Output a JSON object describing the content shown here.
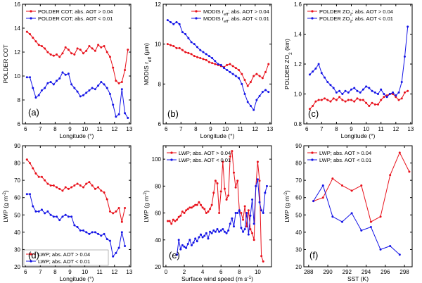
{
  "colors": {
    "red": "#e8111b",
    "blue": "#1414e6"
  },
  "chart_data": [
    {
      "id": "a",
      "type": "line",
      "panel_label": "(a)",
      "xlabel": "Longitude (°)",
      "ylabel": "POLDER COT",
      "xlim": [
        5.8,
        13.1
      ],
      "ylim": [
        6,
        16
      ],
      "xticks": [
        6,
        7,
        8,
        9,
        10,
        11,
        12,
        13
      ],
      "yticks": [
        6,
        8,
        10,
        12,
        14,
        16
      ],
      "legend_loc": "top",
      "series": [
        {
          "name": "POLDER COT; abs. AOT > 0.04",
          "color": "red",
          "x": [
            6.1,
            6.3,
            6.5,
            6.7,
            6.9,
            7.1,
            7.3,
            7.5,
            7.7,
            7.9,
            8.1,
            8.3,
            8.5,
            8.7,
            8.9,
            9.1,
            9.3,
            9.5,
            9.7,
            9.9,
            10.1,
            10.3,
            10.5,
            10.7,
            10.9,
            11.1,
            11.3,
            11.5,
            11.7,
            11.9,
            12.1,
            12.3,
            12.5,
            12.7,
            12.9
          ],
          "y": [
            13.7,
            13.5,
            13.2,
            12.9,
            12.6,
            12.5,
            12.3,
            12.0,
            11.8,
            11.7,
            11.8,
            11.6,
            11.9,
            12.4,
            12.2,
            11.9,
            11.8,
            12.3,
            12.2,
            11.9,
            12.1,
            12.5,
            12.3,
            12.1,
            12.6,
            12.4,
            12.5,
            12.0,
            11.6,
            10.7,
            9.6,
            9.4,
            9.5,
            10.5,
            12.2
          ]
        },
        {
          "name": "POLDER COT; abs. AOT < 0.01",
          "color": "blue",
          "x": [
            6.1,
            6.3,
            6.5,
            6.7,
            6.9,
            7.1,
            7.3,
            7.5,
            7.7,
            7.9,
            8.1,
            8.3,
            8.5,
            8.7,
            8.9,
            9.1,
            9.3,
            9.5,
            9.7,
            9.9,
            10.1,
            10.3,
            10.5,
            10.7,
            10.9,
            11.1,
            11.3,
            11.5,
            11.7,
            11.9,
            12.1,
            12.3,
            12.5,
            12.7,
            12.9
          ],
          "y": [
            9.9,
            9.9,
            9.0,
            8.2,
            8.4,
            8.8,
            9.0,
            9.4,
            9.5,
            9.3,
            9.6,
            9.8,
            10.3,
            10.1,
            10.2,
            9.3,
            9.0,
            8.7,
            8.3,
            8.4,
            8.6,
            8.8,
            9.0,
            8.9,
            9.2,
            9.5,
            9.3,
            9.0,
            8.5,
            7.6,
            6.6,
            6.8,
            8.9,
            6.9,
            6.5
          ]
        }
      ]
    },
    {
      "id": "b",
      "type": "line",
      "panel_label": "(b)",
      "xlabel": "Longitude (°)",
      "ylabel": "MODIS r_eff (μm)",
      "xlim": [
        5.8,
        13.1
      ],
      "ylim": [
        6,
        12
      ],
      "xticks": [
        6,
        7,
        8,
        9,
        10,
        11,
        12,
        13
      ],
      "yticks": [
        6,
        8,
        10,
        12
      ],
      "legend_loc": "top-right",
      "series": [
        {
          "name": "MODIS r_eff; abs. AOT > 0.04",
          "color": "red",
          "x": [
            6.1,
            6.3,
            6.5,
            6.7,
            6.9,
            7.1,
            7.3,
            7.5,
            7.7,
            7.9,
            8.1,
            8.3,
            8.5,
            8.7,
            8.9,
            9.1,
            9.3,
            9.5,
            9.7,
            9.9,
            10.1,
            10.3,
            10.5,
            10.7,
            10.9,
            11.1,
            11.3,
            11.5,
            11.7,
            11.9,
            12.1,
            12.3,
            12.5,
            12.7,
            12.9
          ],
          "y": [
            10.0,
            9.95,
            9.9,
            9.8,
            9.8,
            9.7,
            9.6,
            9.55,
            9.5,
            9.4,
            9.35,
            9.3,
            9.25,
            9.2,
            9.1,
            9.05,
            9.0,
            8.95,
            8.9,
            8.85,
            8.95,
            9.0,
            8.9,
            8.8,
            8.7,
            8.5,
            8.2,
            7.9,
            8.1,
            8.4,
            8.5,
            8.4,
            8.3,
            8.6,
            9.0
          ]
        },
        {
          "name": "MODIS r_eff; abs. AOT < 0.01",
          "color": "blue",
          "x": [
            6.1,
            6.3,
            6.5,
            6.7,
            6.9,
            7.1,
            7.3,
            7.5,
            7.7,
            7.9,
            8.1,
            8.3,
            8.5,
            8.7,
            8.9,
            9.1,
            9.3,
            9.5,
            9.7,
            9.9,
            10.1,
            10.3,
            10.5,
            10.7,
            10.9,
            11.1,
            11.3,
            11.5,
            11.7,
            11.9,
            12.1,
            12.3,
            12.5,
            12.7,
            12.9
          ],
          "y": [
            11.2,
            11.1,
            11.0,
            11.1,
            11.0,
            10.6,
            10.5,
            10.3,
            10.1,
            10.0,
            9.85,
            9.7,
            9.6,
            9.5,
            9.4,
            9.3,
            9.15,
            9.0,
            8.95,
            8.8,
            8.7,
            8.6,
            8.5,
            8.4,
            8.3,
            8.0,
            7.5,
            7.1,
            6.9,
            6.7,
            7.2,
            7.4,
            7.6,
            7.7,
            7.6
          ]
        }
      ]
    },
    {
      "id": "c",
      "type": "line",
      "panel_label": "(c)",
      "xlabel": "Longitude (°)",
      "ylabel": "POLDER ZO_2 (km)",
      "xlim": [
        5.8,
        13.1
      ],
      "ylim": [
        0.8,
        1.6
      ],
      "xticks": [
        6,
        7,
        8,
        9,
        10,
        11,
        12,
        13
      ],
      "yticks": [
        0.8,
        1.0,
        1.2,
        1.4,
        1.6
      ],
      "legend_loc": "top",
      "series": [
        {
          "name": "POLDER ZO_2; abs. AOT > 0.04",
          "color": "red",
          "x": [
            6.2,
            6.4,
            6.6,
            6.8,
            7.0,
            7.2,
            7.4,
            7.6,
            7.8,
            8.0,
            8.2,
            8.4,
            8.6,
            8.8,
            9.0,
            9.2,
            9.4,
            9.6,
            9.8,
            10.0,
            10.2,
            10.4,
            10.6,
            10.8,
            11.0,
            11.2,
            11.4,
            11.6,
            11.8,
            12.0,
            12.2,
            12.4,
            12.6,
            12.8
          ],
          "y": [
            0.9,
            0.92,
            0.95,
            0.96,
            0.96,
            0.97,
            0.96,
            0.95,
            0.97,
            0.96,
            0.98,
            0.96,
            0.95,
            0.96,
            0.96,
            0.95,
            0.97,
            0.96,
            0.96,
            0.94,
            0.92,
            0.94,
            0.93,
            0.93,
            0.96,
            0.98,
            0.99,
            1.0,
            1.0,
            0.98,
            0.96,
            0.97,
            1.01,
            1.02
          ]
        },
        {
          "name": "POLDER ZO_2; abs. AOT < 0.01",
          "color": "blue",
          "x": [
            6.2,
            6.4,
            6.6,
            6.8,
            7.0,
            7.2,
            7.4,
            7.6,
            7.8,
            8.0,
            8.2,
            8.4,
            8.6,
            8.8,
            9.0,
            9.2,
            9.4,
            9.6,
            9.8,
            10.0,
            10.2,
            10.4,
            10.6,
            10.8,
            11.0,
            11.2,
            11.4,
            11.6,
            11.8,
            12.0,
            12.2,
            12.4,
            12.6,
            12.8
          ],
          "y": [
            1.13,
            1.15,
            1.17,
            1.2,
            1.14,
            1.11,
            1.08,
            1.06,
            1.04,
            1.01,
            1.02,
            1.0,
            1.02,
            1.01,
            1.03,
            1.04,
            1.02,
            1.01,
            1.03,
            1.05,
            1.04,
            1.02,
            1.01,
            1.0,
            1.03,
            1.0,
            0.98,
            1.0,
            1.01,
            0.99,
            1.01,
            1.08,
            1.25,
            1.45
          ]
        }
      ]
    },
    {
      "id": "d",
      "type": "line",
      "panel_label": "(d)",
      "xlabel": "Longitude (°)",
      "ylabel": "LWP (g m^-2)",
      "xlim": [
        5.8,
        13.1
      ],
      "ylim": [
        20,
        90
      ],
      "xticks": [
        6,
        7,
        8,
        9,
        10,
        11,
        12,
        13
      ],
      "yticks": [
        20,
        30,
        40,
        50,
        60,
        70,
        80,
        90
      ],
      "legend_loc": "bottom-left",
      "series": [
        {
          "name": "LWP; abs. AOT > 0.04",
          "color": "red",
          "x": [
            6.1,
            6.3,
            6.5,
            6.7,
            6.9,
            7.1,
            7.3,
            7.5,
            7.7,
            7.9,
            8.1,
            8.3,
            8.5,
            8.7,
            8.9,
            9.1,
            9.3,
            9.5,
            9.7,
            9.9,
            10.1,
            10.3,
            10.5,
            10.7,
            10.9,
            11.1,
            11.3,
            11.5,
            11.7,
            11.9,
            12.1,
            12.3,
            12.5,
            12.7
          ],
          "y": [
            82,
            80,
            77,
            74,
            72,
            72,
            70,
            68,
            67,
            67,
            66,
            65,
            64,
            66,
            65,
            66,
            67,
            68,
            67,
            66,
            68,
            69,
            67,
            65,
            66,
            64,
            63,
            59,
            52,
            51,
            52,
            54,
            46,
            54
          ]
        },
        {
          "name": "LWP; abs. AOT < 0.01",
          "color": "blue",
          "x": [
            6.1,
            6.3,
            6.5,
            6.7,
            6.9,
            7.1,
            7.3,
            7.5,
            7.7,
            7.9,
            8.1,
            8.3,
            8.5,
            8.7,
            8.9,
            9.1,
            9.3,
            9.5,
            9.7,
            9.9,
            10.1,
            10.3,
            10.5,
            10.7,
            10.9,
            11.1,
            11.3,
            11.5,
            11.7,
            11.9,
            12.1,
            12.3,
            12.5,
            12.7
          ],
          "y": [
            62,
            62,
            55,
            52,
            52,
            53,
            51,
            52,
            50,
            49,
            49,
            47,
            49,
            50,
            49,
            49,
            44,
            43,
            41,
            41,
            40,
            39,
            40,
            40,
            39,
            38,
            39,
            36,
            35,
            26,
            28,
            31,
            40,
            32
          ]
        }
      ]
    },
    {
      "id": "e",
      "type": "line",
      "panel_label": "(e)",
      "xlabel": "Surface wind speed (m s^-1)",
      "ylabel": "LWP (g m^-2)",
      "xlim": [
        -0.3,
        11.5
      ],
      "ylim": [
        20,
        110
      ],
      "xticks": [
        0,
        2,
        4,
        6,
        8,
        10
      ],
      "yticks": [
        20,
        40,
        60,
        80,
        100
      ],
      "legend_loc": "top-left",
      "series": [
        {
          "name": "LWP; abs. AOT > 0.04",
          "color": "red",
          "x": [
            0.2,
            0.4,
            0.6,
            0.8,
            1.0,
            1.2,
            1.4,
            1.6,
            1.8,
            2.0,
            2.2,
            2.4,
            2.6,
            2.8,
            3.0,
            3.2,
            3.4,
            3.6,
            3.8,
            4.0,
            4.2,
            4.4,
            4.6,
            4.8,
            5.0,
            5.2,
            5.4,
            5.6,
            5.8,
            6.0,
            6.2,
            6.4,
            6.6,
            6.8,
            7.0,
            7.2,
            7.4,
            7.6,
            7.8,
            8.0,
            8.2,
            8.4,
            8.6,
            8.8,
            9.0,
            9.2,
            9.4,
            9.6,
            9.8,
            10.0,
            10.2,
            10.4,
            10.6
          ],
          "y": [
            54,
            54,
            52,
            55,
            54,
            55,
            57,
            58,
            61,
            60,
            62,
            63,
            64,
            64,
            65,
            66,
            66,
            68,
            66,
            64,
            63,
            60,
            61,
            63,
            66,
            75,
            84,
            82,
            60,
            76,
            98,
            78,
            70,
            73,
            102,
            106,
            90,
            79,
            84,
            62,
            60,
            55,
            65,
            50,
            62,
            48,
            45,
            40,
            80,
            98,
            84,
            28,
            24
          ]
        },
        {
          "name": "LWP; abs. AOT < 0.01",
          "color": "blue",
          "x": [
            1.2,
            1.4,
            1.6,
            1.8,
            2.0,
            2.2,
            2.4,
            2.6,
            2.8,
            3.0,
            3.2,
            3.4,
            3.6,
            3.8,
            4.0,
            4.2,
            4.4,
            4.6,
            4.8,
            5.0,
            5.2,
            5.4,
            5.6,
            5.8,
            6.0,
            6.2,
            6.4,
            6.6,
            6.8,
            7.0,
            7.2,
            7.4,
            7.6,
            7.8,
            8.0,
            8.2,
            8.4,
            8.6,
            8.8,
            9.0,
            9.2,
            9.4,
            9.6,
            9.8,
            10.0,
            10.2,
            10.4,
            10.6,
            10.8,
            11.0
          ],
          "y": [
            29,
            40,
            33,
            36,
            35,
            34,
            37,
            40,
            36,
            38,
            41,
            39,
            42,
            44,
            42,
            43,
            45,
            41,
            46,
            45,
            47,
            46,
            48,
            46,
            47,
            48,
            46,
            45,
            47,
            52,
            56,
            50,
            60,
            60,
            62,
            49,
            46,
            48,
            60,
            44,
            58,
            70,
            52,
            80,
            85,
            68,
            62,
            60,
            75,
            80
          ]
        }
      ]
    },
    {
      "id": "f",
      "type": "line",
      "panel_label": "(f)",
      "xlabel": "SST (K)",
      "ylabel": "LWP (g m^-2)",
      "xlim": [
        287.5,
        298.8
      ],
      "ylim": [
        20,
        90
      ],
      "xticks": [
        288,
        290,
        292,
        294,
        296,
        298
      ],
      "yticks": [
        20,
        30,
        40,
        50,
        60,
        70,
        80,
        90
      ],
      "legend_loc": "top-left",
      "series": [
        {
          "name": "LWP; abs. AOT > 0.04",
          "color": "red",
          "x": [
            288.5,
            289.5,
            290.5,
            291.5,
            292.5,
            293.5,
            294.5,
            295.5,
            296.5,
            297.5,
            298.5
          ],
          "y": [
            58,
            60,
            71,
            67,
            64,
            67,
            46,
            49,
            73,
            86,
            75
          ]
        },
        {
          "name": "LWP; abs. AOT < 0.01",
          "color": "blue",
          "x": [
            288.5,
            289.5,
            290.5,
            291.5,
            292.5,
            293.5,
            294.5,
            295.5,
            296.5,
            297.5
          ],
          "y": [
            58,
            67,
            49,
            46,
            51,
            41,
            43,
            30,
            32,
            27
          ]
        }
      ]
    }
  ]
}
